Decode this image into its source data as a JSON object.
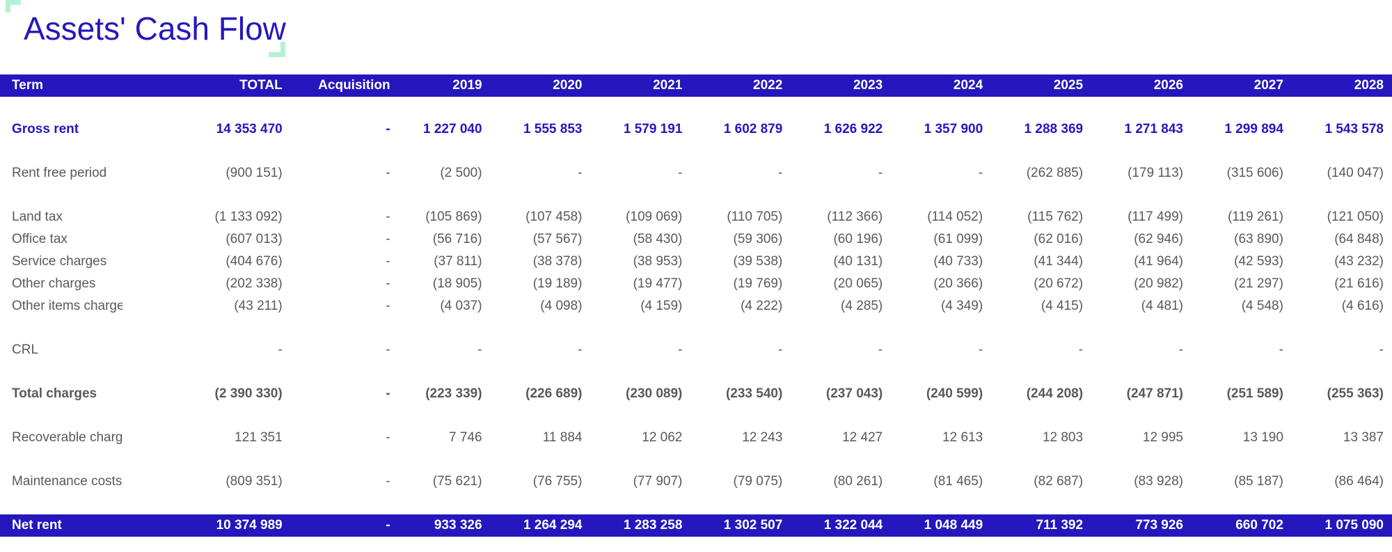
{
  "page": {
    "title": "Assets' Cash Flow"
  },
  "columns": [
    "Term",
    "TOTAL",
    "Acquisition",
    "2019",
    "2020",
    "2021",
    "2022",
    "2023",
    "2024",
    "2025",
    "2026",
    "2027",
    "2028"
  ],
  "rows": {
    "gross_rent": [
      "Gross rent",
      "14 353 470",
      "-",
      "1 227 040",
      "1 555 853",
      "1 579 191",
      "1 602 879",
      "1 626 922",
      "1 357 900",
      "1 288 369",
      "1 271 843",
      "1 299 894",
      "1 543 578"
    ],
    "rent_free": [
      "Rent free period",
      "(900 151)",
      "-",
      "(2 500)",
      "-",
      "-",
      "-",
      "-",
      "-",
      "(262 885)",
      "(179 113)",
      "(315 606)",
      "(140 047)"
    ],
    "land_tax": [
      "Land tax",
      "(1 133 092)",
      "-",
      "(105 869)",
      "(107 458)",
      "(109 069)",
      "(110 705)",
      "(112 366)",
      "(114 052)",
      "(115 762)",
      "(117 499)",
      "(119 261)",
      "(121 050)"
    ],
    "office_tax": [
      "Office tax",
      "(607 013)",
      "-",
      "(56 716)",
      "(57 567)",
      "(58 430)",
      "(59 306)",
      "(60 196)",
      "(61 099)",
      "(62 016)",
      "(62 946)",
      "(63 890)",
      "(64 848)"
    ],
    "service_charges": [
      "Service charges",
      "(404 676)",
      "-",
      "(37 811)",
      "(38 378)",
      "(38 953)",
      "(39 538)",
      "(40 131)",
      "(40 733)",
      "(41 344)",
      "(41 964)",
      "(42 593)",
      "(43 232)"
    ],
    "other_charges": [
      "Other charges",
      "(202 338)",
      "-",
      "(18 905)",
      "(19 189)",
      "(19 477)",
      "(19 769)",
      "(20 065)",
      "(20 366)",
      "(20 672)",
      "(20 982)",
      "(21 297)",
      "(21 616)"
    ],
    "other_items_charges": [
      "Other items charges",
      "(43 211)",
      "-",
      "(4 037)",
      "(4 098)",
      "(4 159)",
      "(4 222)",
      "(4 285)",
      "(4 349)",
      "(4 415)",
      "(4 481)",
      "(4 548)",
      "(4 616)"
    ],
    "crl": [
      "CRL",
      "-",
      "-",
      "-",
      "-",
      "-",
      "-",
      "-",
      "-",
      "-",
      "-",
      "-",
      "-"
    ],
    "total_charges": [
      "Total charges",
      "(2 390 330)",
      "-",
      "(223 339)",
      "(226 689)",
      "(230 089)",
      "(233 540)",
      "(237 043)",
      "(240 599)",
      "(244 208)",
      "(247 871)",
      "(251 589)",
      "(255 363)"
    ],
    "recoverable_charges": [
      "Recoverable charges",
      "121 351",
      "-",
      "7 746",
      "11 884",
      "12 062",
      "12 243",
      "12 427",
      "12 613",
      "12 803",
      "12 995",
      "13 190",
      "13 387"
    ],
    "maintenance_costs": [
      "Maintenance costs",
      "(809 351)",
      "-",
      "(75 621)",
      "(76 755)",
      "(77 907)",
      "(79 075)",
      "(80 261)",
      "(81 465)",
      "(82 687)",
      "(83 928)",
      "(85 187)",
      "(86 464)"
    ],
    "net_rent": [
      "Net rent",
      "10 374 989",
      "-",
      "933 326",
      "1 264 294",
      "1 283 258",
      "1 302 507",
      "1 322 044",
      "1 048 449",
      "711 392",
      "773 926",
      "660 702",
      "1 075 090"
    ]
  },
  "colors": {
    "header_band": "#2517bd",
    "title": "#2517bd",
    "accent_corner": "#b8f0d6",
    "body_text": "#595959"
  }
}
